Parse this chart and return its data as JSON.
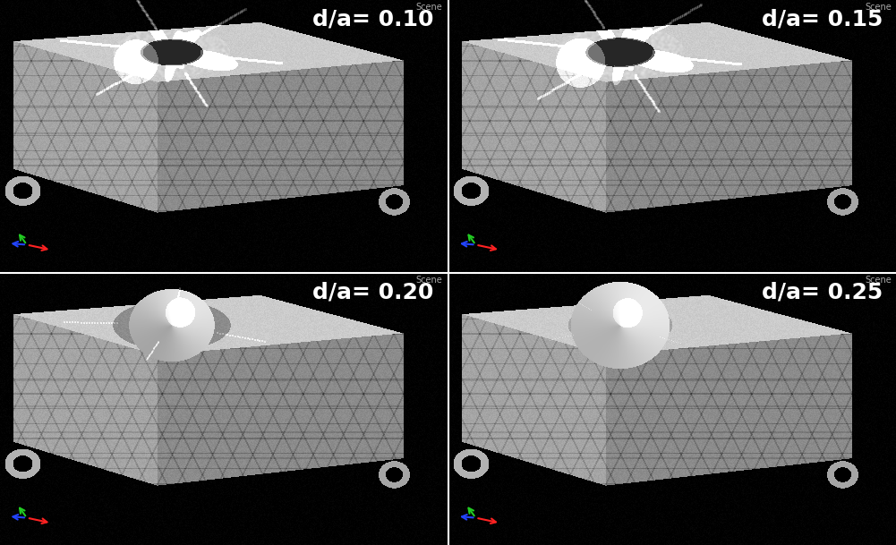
{
  "labels": [
    "d/a= 0.10",
    "d/a= 0.15",
    "d/a= 0.20",
    "d/a= 0.25"
  ],
  "scene_label": "Scene",
  "background_color": "#000000",
  "text_color": "#ffffff",
  "label_fontsize": 18,
  "scene_fontsize": 7,
  "grid_rows": 2,
  "grid_cols": 2,
  "fig_width": 10.01,
  "fig_height": 6.09,
  "divider_color": "#ffffff",
  "divider_lw": 1.5
}
